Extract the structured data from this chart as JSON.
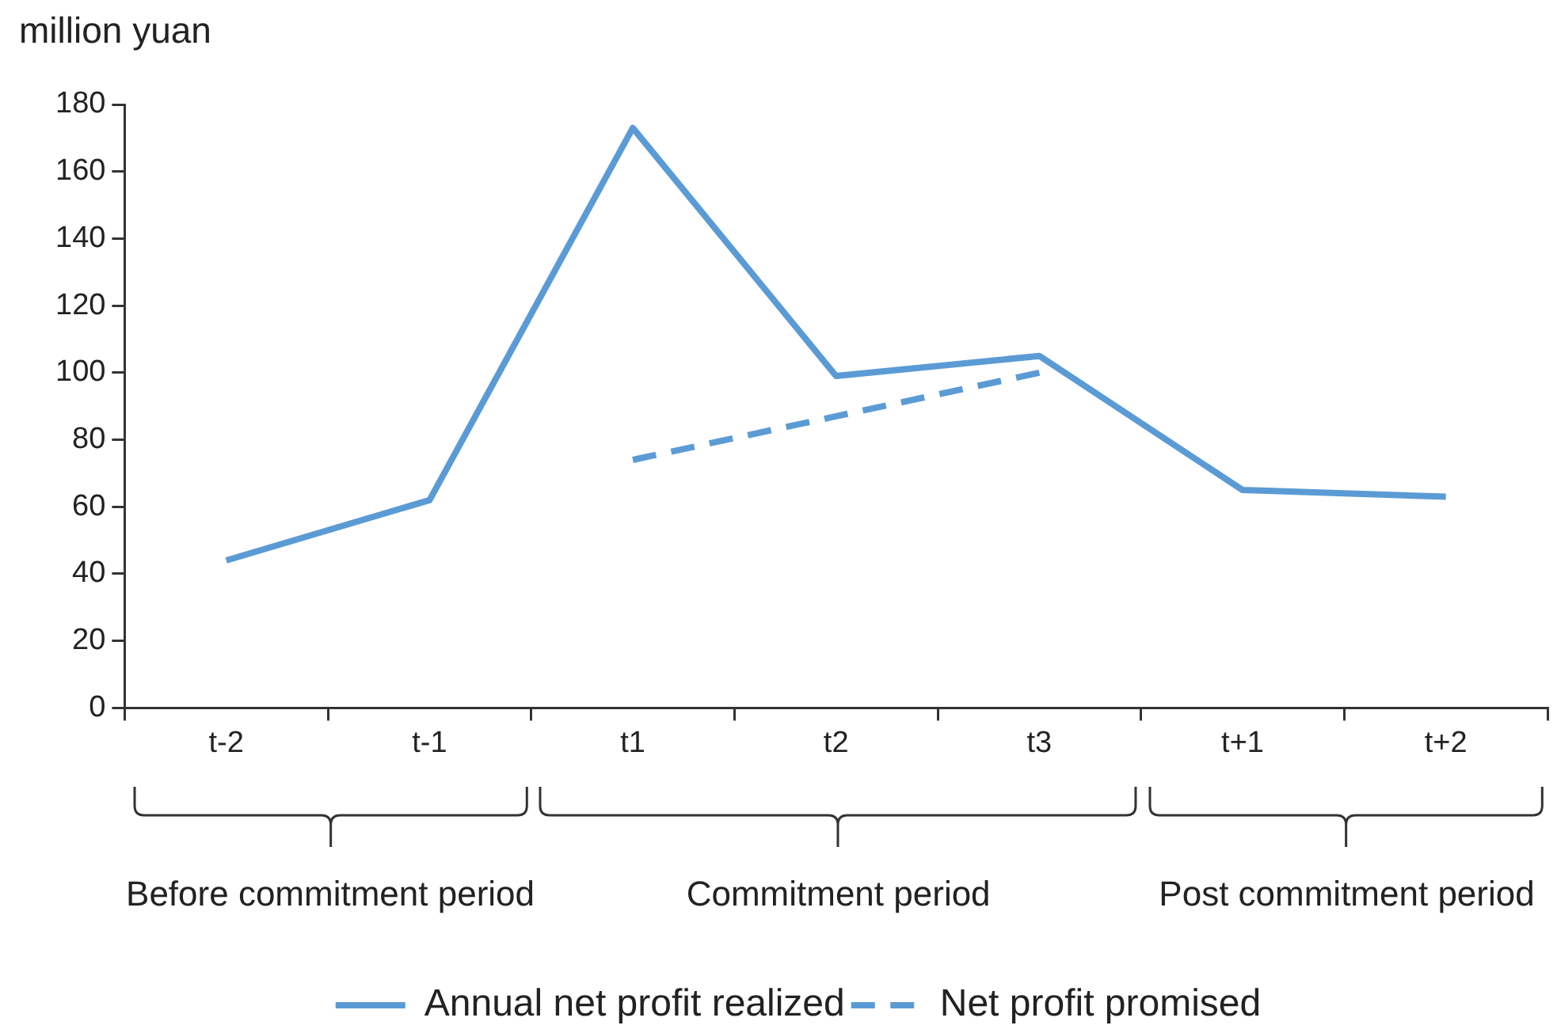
{
  "chart_data": {
    "type": "line",
    "ylabel": "million yuan",
    "categories": [
      "t-2",
      "t-1",
      "t1",
      "t2",
      "t3",
      "t+1",
      "t+2"
    ],
    "series": [
      {
        "name": "Annual net profit realized",
        "color": "#5b9bd5",
        "values": [
          44,
          62,
          173,
          99,
          105,
          65,
          63
        ],
        "line_style": "solid"
      },
      {
        "name": "Net profit promised",
        "color": "#5b9bd5",
        "values": [
          null,
          null,
          74,
          87,
          100,
          null,
          null
        ],
        "line_style": "dashed"
      }
    ],
    "ylim": [
      0,
      180
    ],
    "yticks": [
      0,
      20,
      40,
      60,
      80,
      100,
      120,
      140,
      160,
      180
    ],
    "legend": "bottom",
    "annotations": [
      "Before commitment period",
      "Commitment period",
      "Post commitment period"
    ]
  }
}
